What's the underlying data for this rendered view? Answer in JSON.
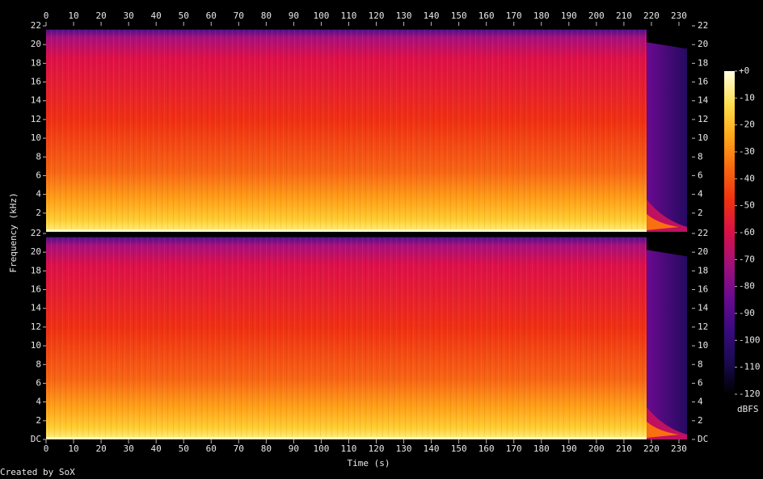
{
  "chart_data": {
    "type": "spectrogram",
    "xlabel": "Time (s)",
    "ylabel": "Frequency (kHz)",
    "annotation": "Created by SoX",
    "xlim": [
      0,
      234.7
    ],
    "xticks": [
      0,
      10,
      20,
      30,
      40,
      50,
      60,
      70,
      80,
      90,
      100,
      110,
      120,
      130,
      140,
      150,
      160,
      170,
      180,
      190,
      200,
      210,
      220,
      230
    ],
    "channels": [
      {
        "ylim": [
          0,
          22
        ],
        "yticks": [
          2,
          4,
          6,
          8,
          10,
          12,
          14,
          16,
          18,
          20,
          22
        ]
      },
      {
        "ylim": [
          0,
          22
        ],
        "yticks": [
          {
            "value": 0,
            "label": "DC"
          },
          2,
          4,
          6,
          8,
          10,
          12,
          14,
          16,
          18,
          20,
          22
        ]
      }
    ],
    "colorbar": {
      "label": "dBFS",
      "lim": [
        -120,
        0
      ],
      "ticks": [
        {
          "value": 0,
          "label": "+0"
        },
        -10,
        -20,
        -30,
        -40,
        -50,
        -60,
        -70,
        -80,
        -90,
        -100,
        -110,
        -120
      ],
      "colormap": [
        "#000000",
        "#1a0a50",
        "#3a0a80",
        "#6a0a90",
        "#a0107a",
        "#d81048",
        "#f03010",
        "#f86810",
        "#ffa818",
        "#ffe050",
        "#ffffe0"
      ]
    }
  }
}
